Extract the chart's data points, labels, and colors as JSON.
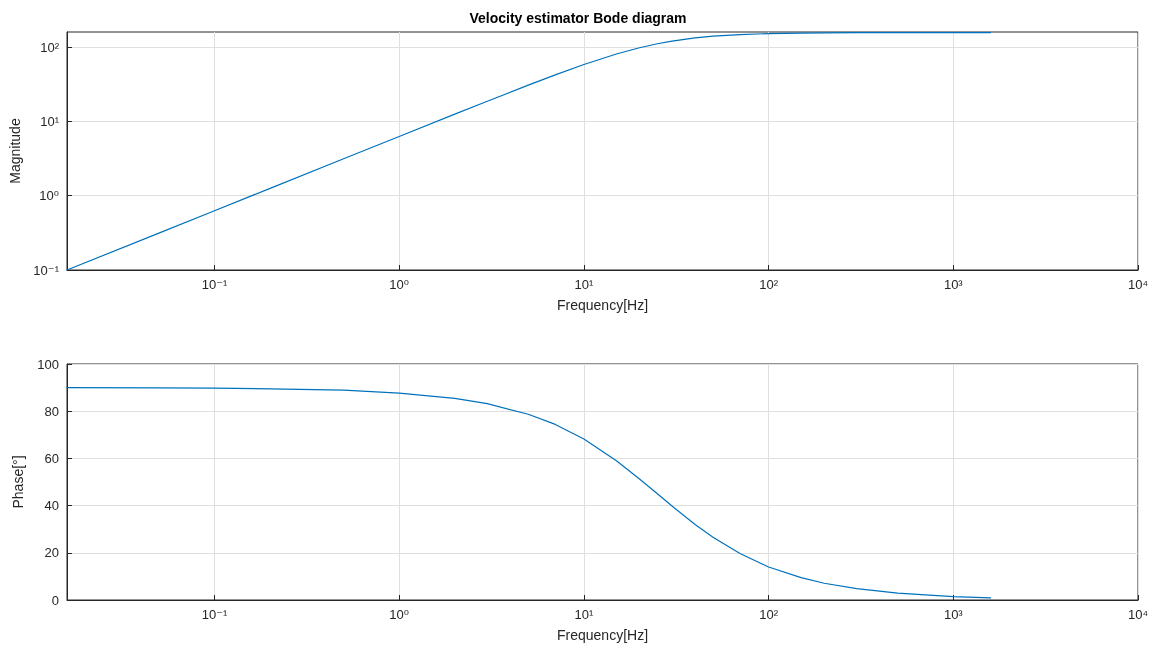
{
  "chart_data": [
    {
      "type": "line",
      "title": "Velocity estimator Bode diagram",
      "xlabel": "Frequency[Hz]",
      "ylabel": "Magnitude",
      "log": "xy",
      "grid": true,
      "marker": "none",
      "line_style": "solid",
      "xlim": [
        0.0159,
        10000
      ],
      "ylim": [
        0.1,
        160
      ],
      "xticks": [
        {
          "value": 0.1,
          "label": "10⁻¹"
        },
        {
          "value": 1,
          "label": "10⁰"
        },
        {
          "value": 10,
          "label": "10¹"
        },
        {
          "value": 100,
          "label": "10²"
        },
        {
          "value": 1000,
          "label": "10³"
        },
        {
          "value": 10000,
          "label": "10⁴"
        }
      ],
      "yticks": [
        {
          "value": 0.1,
          "label": "10⁻¹"
        },
        {
          "value": 1,
          "label": "10⁰"
        },
        {
          "value": 10,
          "label": "10¹"
        },
        {
          "value": 100,
          "label": "10²"
        }
      ],
      "series": [
        {
          "color": "#0072bd",
          "x": [
            0.0159,
            0.05,
            0.1,
            0.2,
            0.5,
            1,
            2,
            3,
            5,
            7,
            10,
            15,
            20,
            25,
            30,
            40,
            50,
            70,
            100,
            150,
            200,
            300,
            500,
            1000,
            1592
          ],
          "values": [
            0.1,
            0.314,
            0.628,
            1.257,
            3.14,
            6.28,
            12.53,
            18.72,
            30.81,
            42.35,
            58.34,
            80.83,
            98.13,
            111.07,
            120.7,
            133.2,
            140.5,
            147.9,
            152.4,
            154.9,
            155.9,
            156.5,
            156.9,
            157.06,
            157.07
          ]
        }
      ]
    },
    {
      "type": "line",
      "xlabel": "Frequency[Hz]",
      "ylabel": "Phase[°]",
      "log": "x",
      "grid": true,
      "marker": "none",
      "line_style": "solid",
      "xlim": [
        0.0159,
        10000
      ],
      "ylim": [
        0,
        100
      ],
      "xticks": [
        {
          "value": 0.1,
          "label": "10⁻¹"
        },
        {
          "value": 1,
          "label": "10⁰"
        },
        {
          "value": 10,
          "label": "10¹"
        },
        {
          "value": 100,
          "label": "10²"
        },
        {
          "value": 1000,
          "label": "10³"
        },
        {
          "value": 10000,
          "label": "10⁴"
        }
      ],
      "yticks": [
        0,
        20,
        40,
        60,
        80,
        100
      ],
      "series": [
        {
          "color": "#0072bd",
          "x": [
            0.0159,
            0.05,
            0.1,
            0.2,
            0.5,
            1,
            2,
            3,
            5,
            7,
            10,
            15,
            20,
            25,
            30,
            40,
            50,
            70,
            100,
            150,
            200,
            300,
            500,
            1000,
            1592
          ],
          "values": [
            90,
            89.9,
            89.8,
            89.5,
            88.9,
            87.7,
            85.4,
            83.2,
            78.7,
            74.4,
            68.2,
            59,
            51.3,
            45,
            39.8,
            32,
            26.6,
            19.7,
            14,
            9.5,
            7.1,
            4.8,
            2.9,
            1.4,
            0.9
          ]
        }
      ]
    }
  ]
}
